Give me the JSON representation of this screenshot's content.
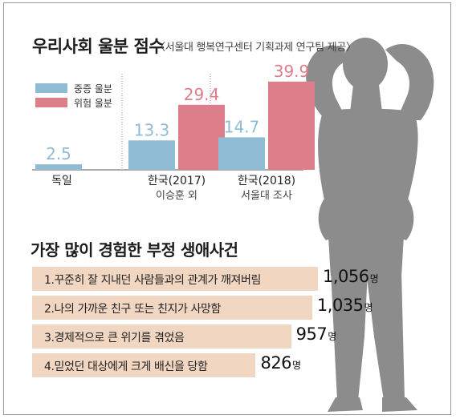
{
  "chart_data": [
    {
      "type": "bar",
      "title": "우리사회 울분 점수",
      "subtitle": "〈서울대 행복연구센터 기획과제 연구팀 제공〉",
      "categories": [
        "독일",
        "한국(2017)",
        "한국(2018)"
      ],
      "category_sublabels": [
        "",
        "이승훈 외",
        "서울대 조사"
      ],
      "series": [
        {
          "name": "중증 울분",
          "values": [
            2.5,
            13.3,
            14.7
          ],
          "color": "#8fbcd4"
        },
        {
          "name": "위험 울분",
          "values": [
            null,
            29.4,
            39.9
          ],
          "color": "#dd7f8b"
        }
      ],
      "value_labels": {
        "중증 울분": [
          "2.5",
          "13.3",
          "14.7"
        ],
        "위험 울분": [
          "",
          "29.4",
          "39.9"
        ]
      },
      "ylim": [
        0,
        42
      ],
      "legend": "top-left",
      "grid": false
    },
    {
      "type": "bar",
      "orientation": "horizontal",
      "title": "가장 많이 경험한 부정 생애사건",
      "categories": [
        "1.꾸준히 잘 지내던 사람들과의 관계가 깨져버림",
        "2.나의 가까운 친구 또는 친지가 사망함",
        "3.경제적으로 큰 위기를 겪었음",
        "4.믿었던 대상에게 크게 배신을 당함"
      ],
      "values": [
        1056,
        1035,
        957,
        826
      ],
      "value_labels": [
        "1,056",
        "1,035",
        "957",
        "826"
      ],
      "unit": "명",
      "color": "#f1d6c2",
      "xlim": [
        0,
        1056
      ]
    }
  ]
}
